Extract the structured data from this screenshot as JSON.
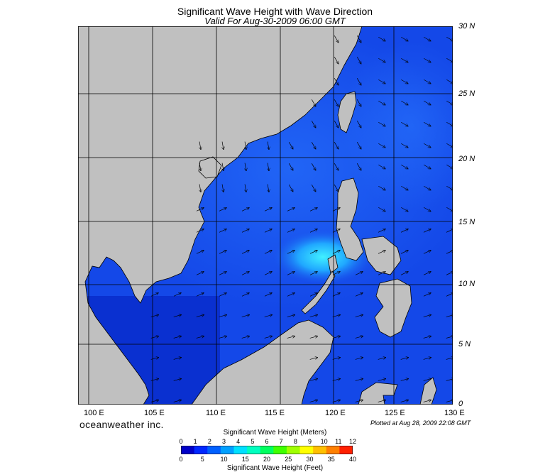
{
  "header": {
    "title": "Significant Wave Height with Wave Direction",
    "subtitle": "Valid For Aug-30-2009 06:00 GMT"
  },
  "map": {
    "lat_labels": [
      "30 N",
      "25 N",
      "20 N",
      "15 N",
      "10 N",
      "5 N",
      "0"
    ],
    "lon_labels": [
      "100 E",
      "105 E",
      "110 E",
      "115 E",
      "120 E",
      "125 E",
      "130 E"
    ],
    "land_color": "#c0c0c0",
    "sea_color_calm": "#1040e0",
    "sea_color_peak": "#30e8ff"
  },
  "footer": {
    "logo": "oceanweather inc.",
    "plotted": "Plotted at Aug 28, 2009 22:08 GMT"
  },
  "colorbar": {
    "title_top": "Significant Wave Height (Meters)",
    "title_bottom": "Significant Wave Height (Feet)",
    "meters_ticks": [
      "0",
      "1",
      "2",
      "3",
      "4",
      "5",
      "6",
      "7",
      "8",
      "9",
      "10",
      "11",
      "12"
    ],
    "feet_ticks": [
      "0",
      "5",
      "10",
      "15",
      "20",
      "25",
      "30",
      "35",
      "40"
    ],
    "colors": [
      "#0000c8",
      "#0028ff",
      "#0060ff",
      "#00a0ff",
      "#00e0ff",
      "#00ffc0",
      "#00ff60",
      "#40ff00",
      "#a0ff00",
      "#ffff00",
      "#ffc000",
      "#ff8000",
      "#ff2000"
    ]
  }
}
